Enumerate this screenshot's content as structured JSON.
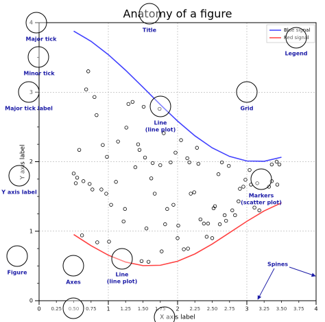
{
  "chart_data": {
    "type": "line",
    "title": "Anatomy of a figure",
    "xlabel": "X axis label",
    "ylabel": "Y axis label",
    "xlim": [
      0,
      4
    ],
    "ylim": [
      0,
      4
    ],
    "xticks": [
      0,
      1,
      2,
      3,
      4
    ],
    "xminorticks": [
      0.25,
      {
        "value": 0.5,
        "label": "0.50"
      },
      0.75,
      1.25,
      {
        "value": 1.5,
        "label": "1.50"
      },
      1.75,
      2.25,
      {
        "value": 2.5,
        "label": "2.50"
      },
      2.75,
      3.25,
      {
        "value": 3.5,
        "label": "3.50"
      },
      3.75
    ],
    "yticks": [
      0,
      1,
      2,
      3,
      4
    ],
    "yminorticks": [
      0.25,
      0.5,
      0.75,
      1.25,
      1.5,
      1.75,
      2.25,
      2.5,
      2.75,
      3.25,
      3.5,
      3.75
    ],
    "grid": true,
    "legend": "upper right",
    "x": [
      0.5,
      0.75,
      1.0,
      1.25,
      1.5,
      1.75,
      2.0,
      2.25,
      2.5,
      2.75,
      3.0,
      3.25,
      3.5
    ],
    "series": [
      {
        "name": "Blue signal",
        "color": "#4040ff",
        "values": [
          3.878,
          3.732,
          3.54,
          3.315,
          3.071,
          2.822,
          2.584,
          2.372,
          2.199,
          2.076,
          2.01,
          2.006,
          2.064
        ]
      },
      {
        "name": "Red signal",
        "color": "#ff4040",
        "values": [
          0.952,
          0.792,
          0.655,
          0.556,
          0.505,
          0.51,
          0.568,
          0.673,
          0.815,
          0.978,
          1.142,
          1.292,
          1.408
        ]
      }
    ],
    "scatter": {
      "color": "#000000",
      "x": [
        0.71,
        0.68,
        0.8,
        0.83,
        0.58,
        0.92,
        0.98,
        0.5,
        0.53,
        0.55,
        0.64,
        0.73,
        0.77,
        0.9,
        0.97,
        1.04,
        1.11,
        1.14,
        1.26,
        1.29,
        1.35,
        1.51,
        1.43,
        1.45,
        1.39,
        1.53,
        1.62,
        1.67,
        1.64,
        1.75,
        1.8,
        1.9,
        1.97,
        2.05,
        2.28,
        2.17,
        2.14,
        2.3,
        2.19,
        2.24,
        1.85,
        1.82,
        2.01,
        2.0,
        2.09,
        2.15,
        2.33,
        2.38,
        2.44,
        2.42,
        2.5,
        2.52,
        2.54,
        2.61,
        2.7,
        2.79,
        2.83,
        2.68,
        2.64,
        2.59,
        2.74,
        2.88,
        2.9,
        2.95,
        2.98,
        3.06,
        3.04,
        3.11,
        3.18,
        3.15,
        3.32,
        3.36,
        3.44,
        3.36,
        3.43,
        3.47,
        0.84,
        0.62,
        1.01,
        1.48,
        1.58,
        1.77,
        1.22,
        1.24,
        1.74,
        1.94,
        1.55
      ],
      "values": [
        3.3,
        3.04,
        2.93,
        2.67,
        2.17,
        2.24,
        2.07,
        1.83,
        1.69,
        1.77,
        1.72,
        1.68,
        1.6,
        1.6,
        1.54,
        1.38,
        1.71,
        2.29,
        2.49,
        2.83,
        2.86,
        2.79,
        2.25,
        2.17,
        1.92,
        2.06,
        1.76,
        1.54,
        1.98,
        1.95,
        2.41,
        1.99,
        2.13,
        2.31,
        2.2,
        1.99,
        2.05,
        1.97,
        1.54,
        1.56,
        1.32,
        1.1,
        1.08,
        0.9,
        0.74,
        0.75,
        1.17,
        1.11,
        1.11,
        0.92,
        0.9,
        1.33,
        1.36,
        1.1,
        1.15,
        1.3,
        1.23,
        1.23,
        1.99,
        1.82,
        1.94,
        1.43,
        1.61,
        1.64,
        1.74,
        1.67,
        1.88,
        1.34,
        1.3,
        1.69,
        1.64,
        1.72,
        1.67,
        1.96,
        2.0,
        1.96,
        0.84,
        0.94,
        0.85,
        0.57,
        0.56,
        0.71,
        1.14,
        1.32,
        2.76,
        1.38,
        1.04
      ]
    },
    "annotation_color": "#1a1aa6",
    "annotations": [
      {
        "lines": [
          "Major tick"
        ]
      },
      {
        "lines": [
          "Minor tick"
        ]
      },
      {
        "lines": [
          "Major tick label"
        ]
      },
      {
        "lines": [
          "Y axis label"
        ]
      },
      {
        "lines": [
          "Figure"
        ]
      },
      {
        "lines": [
          "Axes"
        ]
      },
      {
        "lines": [
          "Line",
          "(line plot)"
        ]
      },
      {
        "lines": [
          "Line",
          "(line plot)"
        ]
      },
      {
        "lines": [
          "Title"
        ]
      },
      {
        "lines": [
          "Grid"
        ]
      },
      {
        "lines": [
          "Legend"
        ]
      },
      {
        "lines": [
          "Markers",
          "(scatter plot)"
        ]
      },
      {
        "lines": [
          "Spines"
        ]
      }
    ]
  }
}
